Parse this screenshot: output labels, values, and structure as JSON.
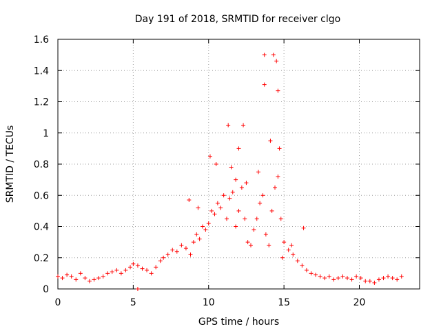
{
  "chart_data": {
    "type": "scatter",
    "title": "Day 191 of 2018, SRMTID for receiver clgo",
    "xlabel": "GPS time / hours",
    "ylabel": "SRMTID / TECUs",
    "xlim": [
      0,
      24
    ],
    "ylim": [
      0,
      1.6
    ],
    "xticks": [
      0,
      5,
      10,
      15,
      20
    ],
    "yticks": [
      0,
      0.2,
      0.4,
      0.6,
      0.8,
      1,
      1.2,
      1.4,
      1.6
    ],
    "xtick_labels": [
      "0",
      "5",
      "10",
      "15",
      "20"
    ],
    "ytick_labels": [
      "0",
      "0.2",
      "0.4",
      "0.6",
      "0.8",
      "1",
      "1.2",
      "1.4",
      "1.6"
    ],
    "grid": true,
    "marker": "+",
    "color": "#ff0000",
    "series": [
      {
        "name": "SRMTID",
        "x": [
          0.0,
          0.3,
          0.6,
          0.9,
          1.2,
          1.5,
          1.8,
          2.1,
          2.4,
          2.7,
          3.0,
          3.3,
          3.6,
          3.9,
          4.2,
          4.5,
          4.8,
          5.0,
          5.3,
          5.6,
          5.9,
          6.2,
          6.5,
          6.8,
          7.0,
          7.3,
          7.6,
          7.9,
          8.2,
          8.5,
          8.8,
          9.0,
          9.2,
          9.4,
          9.6,
          9.8,
          10.0,
          10.2,
          10.4,
          10.6,
          10.8,
          11.0,
          11.2,
          11.4,
          11.6,
          11.8,
          12.0,
          12.2,
          12.4,
          12.6,
          12.8,
          13.0,
          13.2,
          13.4,
          13.6,
          13.8,
          14.0,
          14.2,
          14.4,
          14.6,
          14.8,
          15.0,
          15.3,
          15.6,
          15.9,
          16.2,
          16.5,
          16.8,
          17.1,
          17.4,
          17.7,
          18.0,
          18.3,
          18.6,
          18.9,
          19.2,
          19.5,
          19.8,
          20.1,
          20.4,
          20.7,
          21.0,
          21.3,
          21.6,
          21.9,
          22.2,
          22.5,
          22.8,
          13.7,
          14.3,
          14.5,
          11.3,
          12.3,
          13.7,
          14.6,
          12.0,
          10.1,
          10.5,
          11.8,
          14.1,
          14.7,
          16.3,
          5.3,
          8.7,
          9.3,
          13.3,
          11.5,
          12.5,
          14.9,
          15.5
        ],
        "y": [
          0.08,
          0.07,
          0.09,
          0.08,
          0.06,
          0.1,
          0.07,
          0.05,
          0.06,
          0.07,
          0.08,
          0.1,
          0.11,
          0.12,
          0.1,
          0.12,
          0.14,
          0.16,
          0.15,
          0.13,
          0.12,
          0.1,
          0.14,
          0.18,
          0.2,
          0.22,
          0.25,
          0.24,
          0.28,
          0.26,
          0.22,
          0.3,
          0.35,
          0.32,
          0.4,
          0.38,
          0.42,
          0.5,
          0.48,
          0.55,
          0.52,
          0.6,
          0.45,
          0.58,
          0.62,
          0.4,
          0.5,
          0.65,
          0.45,
          0.3,
          0.28,
          0.38,
          0.45,
          0.55,
          0.6,
          0.35,
          0.28,
          0.5,
          0.65,
          0.72,
          0.45,
          0.3,
          0.25,
          0.22,
          0.18,
          0.15,
          0.12,
          0.1,
          0.09,
          0.08,
          0.07,
          0.08,
          0.06,
          0.07,
          0.08,
          0.07,
          0.06,
          0.08,
          0.07,
          0.05,
          0.05,
          0.04,
          0.06,
          0.07,
          0.08,
          0.07,
          0.06,
          0.08,
          1.5,
          1.5,
          1.46,
          1.05,
          1.05,
          1.31,
          1.27,
          0.9,
          0.85,
          0.8,
          0.7,
          0.95,
          0.9,
          0.39,
          0.0,
          0.57,
          0.52,
          0.75,
          0.78,
          0.68,
          0.2,
          0.28
        ]
      }
    ]
  }
}
